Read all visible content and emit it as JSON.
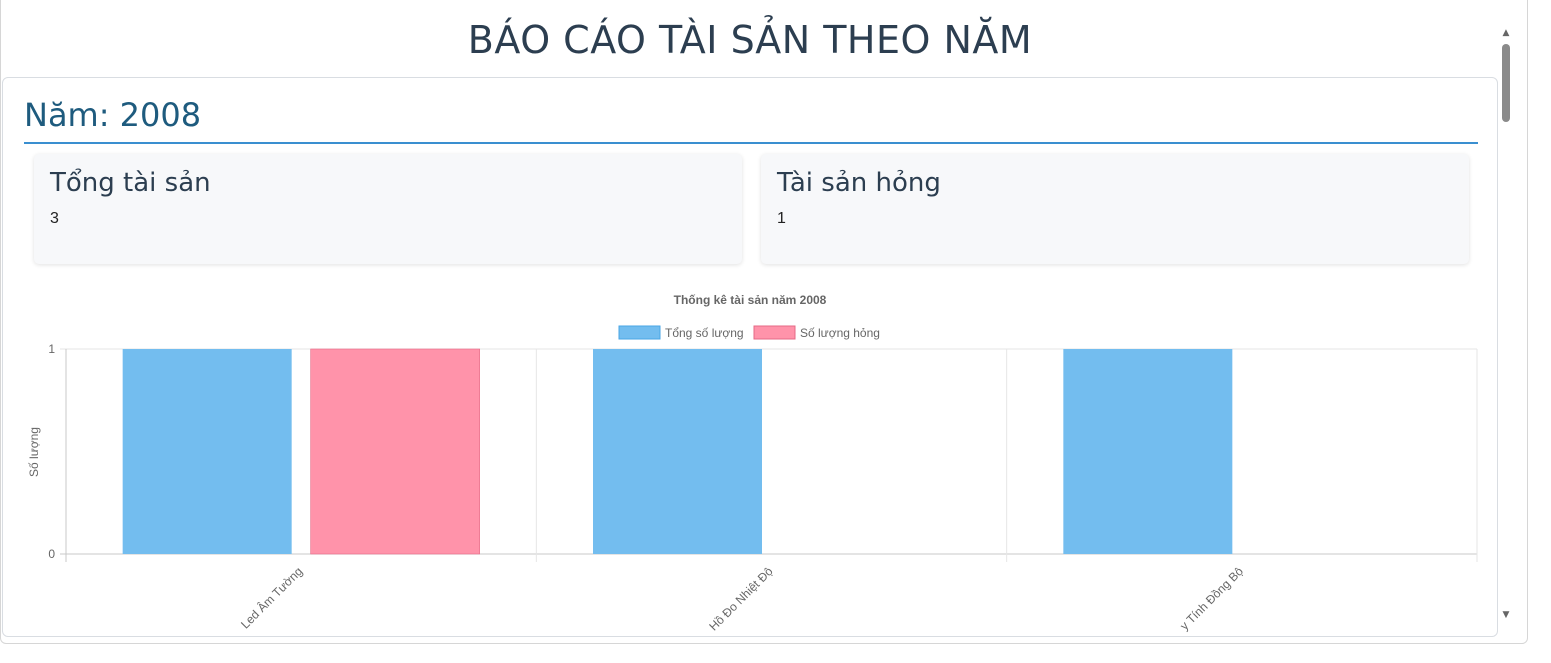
{
  "page": {
    "title": "BÁO CÁO TÀI SẢN THEO NĂM"
  },
  "report": {
    "year_heading": "Năm: 2008",
    "stats": {
      "total_label": "Tổng tài sản",
      "total_value": "3",
      "broken_label": "Tài sản hỏng",
      "broken_value": "1"
    }
  },
  "colors": {
    "total_fill": "#73bdef",
    "broken_fill": "#ff93aa",
    "broken_stroke": "#e46a85",
    "total_stroke": "#4aa6e6",
    "heading": "#1e5b7e",
    "divider": "#3a8fd0"
  },
  "chart_data": {
    "type": "bar",
    "title": "Thống kê tài sản năm 2008",
    "ylabel": "Số lượng",
    "xlabel": "",
    "categories": [
      "Led Âm Tường",
      "Hồ Đo Nhiệt Độ",
      "y Tính Đồng Bộ"
    ],
    "series": [
      {
        "name": "Tổng số lượng",
        "values": [
          1,
          1,
          1
        ]
      },
      {
        "name": "Số lượng hỏng",
        "values": [
          1,
          0,
          0
        ]
      }
    ],
    "ylim": [
      0,
      1
    ],
    "y_ticks": [
      "0",
      "1"
    ],
    "legend_position": "top",
    "grid": true
  },
  "scrollbar": {
    "up_icon": "▲",
    "down_icon": "▼"
  }
}
